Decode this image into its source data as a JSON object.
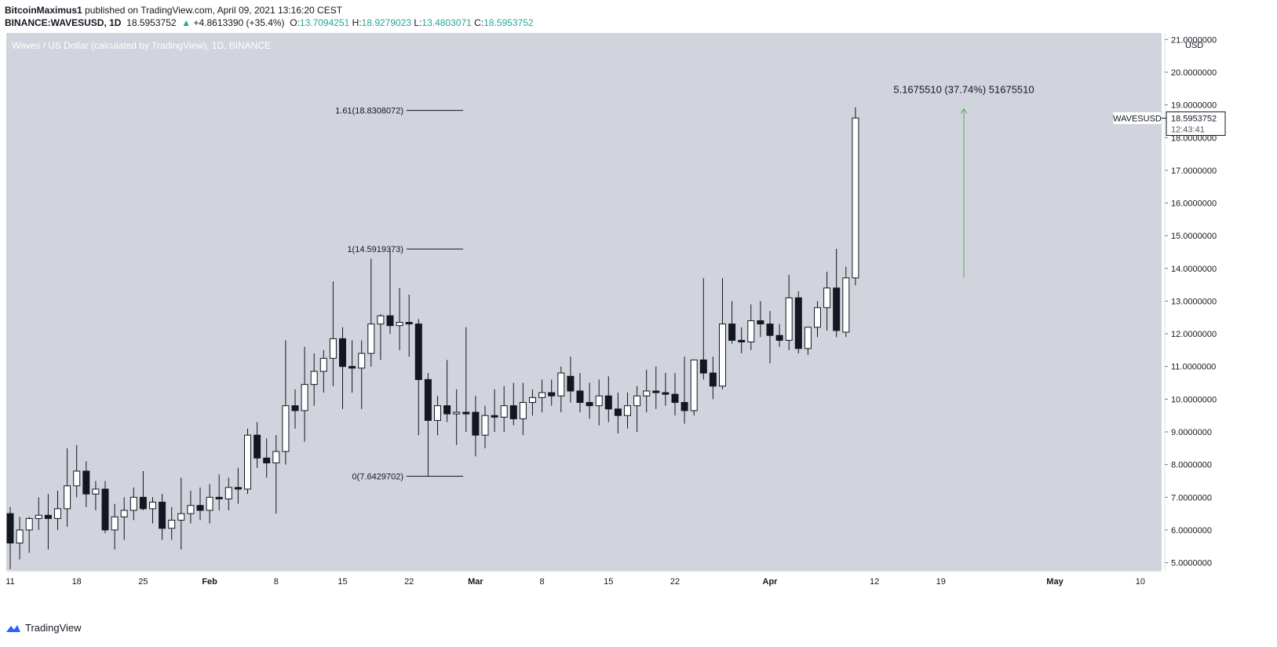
{
  "header": {
    "author": "BitcoinMaximus1",
    "published_text": "published on TradingView.com, April 09, 2021 13:16:20 CEST",
    "symbol": "BINANCE:WAVESUSD",
    "interval": "1D",
    "last": "18.5953752",
    "change": "+4.8613390 (+35.4%)",
    "open_label": "O:",
    "open": "13.7094251",
    "high_label": "H:",
    "high": "18.9279023",
    "low_label": "L:",
    "low": "13.4803071",
    "close_label": "C:",
    "close": "18.5953752"
  },
  "footer": {
    "brand": "TradingView"
  },
  "chart_data": {
    "type": "candlestick",
    "title": "Waves / US Dollar (calculated by TradingView), 1D, BINANCE",
    "currency_label": "USD",
    "ylim": [
      4.75,
      21.2
    ],
    "y_ticks": [
      "5.0000000",
      "6.0000000",
      "7.0000000",
      "8.0000000",
      "9.0000000",
      "10.0000000",
      "11.0000000",
      "12.0000000",
      "13.0000000",
      "14.0000000",
      "15.0000000",
      "16.0000000",
      "17.0000000",
      "18.0000000",
      "19.0000000",
      "20.0000000",
      "21.0000000"
    ],
    "x_ticks": [
      {
        "label": "11",
        "index": 0
      },
      {
        "label": "18",
        "index": 7
      },
      {
        "label": "25",
        "index": 14
      },
      {
        "label": "Feb",
        "index": 21
      },
      {
        "label": "8",
        "index": 28
      },
      {
        "label": "15",
        "index": 35
      },
      {
        "label": "22",
        "index": 42
      },
      {
        "label": "Mar",
        "index": 49
      },
      {
        "label": "8",
        "index": 56
      },
      {
        "label": "15",
        "index": 63
      },
      {
        "label": "22",
        "index": 70
      },
      {
        "label": "Apr",
        "index": 80
      },
      {
        "label": "12",
        "index": 91
      },
      {
        "label": "19",
        "index": 98
      },
      {
        "label": "May",
        "index": 110
      },
      {
        "label": "10",
        "index": 119
      }
    ],
    "candles": [
      {
        "o": 6.5,
        "h": 6.7,
        "l": 4.8,
        "c": 5.6
      },
      {
        "o": 5.6,
        "h": 6.4,
        "l": 5.1,
        "c": 6.0
      },
      {
        "o": 6.0,
        "h": 6.4,
        "l": 5.3,
        "c": 6.35
      },
      {
        "o": 6.35,
        "h": 7.0,
        "l": 6.0,
        "c": 6.45
      },
      {
        "o": 6.45,
        "h": 7.1,
        "l": 5.4,
        "c": 6.35
      },
      {
        "o": 6.35,
        "h": 7.2,
        "l": 6.0,
        "c": 6.65
      },
      {
        "o": 6.65,
        "h": 8.5,
        "l": 6.1,
        "c": 7.35
      },
      {
        "o": 7.35,
        "h": 8.6,
        "l": 7.0,
        "c": 7.8
      },
      {
        "o": 7.8,
        "h": 8.1,
        "l": 6.7,
        "c": 7.1
      },
      {
        "o": 7.1,
        "h": 7.5,
        "l": 6.6,
        "c": 7.25
      },
      {
        "o": 7.25,
        "h": 7.5,
        "l": 5.9,
        "c": 6.0
      },
      {
        "o": 6.0,
        "h": 6.8,
        "l": 5.4,
        "c": 6.4
      },
      {
        "o": 6.4,
        "h": 7.0,
        "l": 5.7,
        "c": 6.6
      },
      {
        "o": 6.6,
        "h": 7.3,
        "l": 6.3,
        "c": 7.0
      },
      {
        "o": 7.0,
        "h": 7.8,
        "l": 6.6,
        "c": 6.65
      },
      {
        "o": 6.65,
        "h": 7.0,
        "l": 6.2,
        "c": 6.85
      },
      {
        "o": 6.85,
        "h": 7.1,
        "l": 5.7,
        "c": 6.05
      },
      {
        "o": 6.05,
        "h": 6.7,
        "l": 5.7,
        "c": 6.3
      },
      {
        "o": 6.3,
        "h": 7.6,
        "l": 5.4,
        "c": 6.5
      },
      {
        "o": 6.5,
        "h": 7.2,
        "l": 6.2,
        "c": 6.75
      },
      {
        "o": 6.75,
        "h": 7.3,
        "l": 6.3,
        "c": 6.6
      },
      {
        "o": 6.6,
        "h": 7.4,
        "l": 6.2,
        "c": 7.0
      },
      {
        "o": 7.0,
        "h": 7.7,
        "l": 6.6,
        "c": 6.95
      },
      {
        "o": 6.95,
        "h": 7.6,
        "l": 6.6,
        "c": 7.3
      },
      {
        "o": 7.3,
        "h": 7.9,
        "l": 6.8,
        "c": 7.25
      },
      {
        "o": 7.25,
        "h": 9.1,
        "l": 7.1,
        "c": 8.9
      },
      {
        "o": 8.9,
        "h": 9.3,
        "l": 7.9,
        "c": 8.2
      },
      {
        "o": 8.2,
        "h": 8.8,
        "l": 7.6,
        "c": 8.05
      },
      {
        "o": 8.05,
        "h": 8.9,
        "l": 6.5,
        "c": 8.4
      },
      {
        "o": 8.4,
        "h": 11.8,
        "l": 8.0,
        "c": 9.8
      },
      {
        "o": 9.8,
        "h": 10.3,
        "l": 9.1,
        "c": 9.65
      },
      {
        "o": 9.65,
        "h": 11.6,
        "l": 8.7,
        "c": 10.45
      },
      {
        "o": 10.45,
        "h": 11.4,
        "l": 9.8,
        "c": 10.85
      },
      {
        "o": 10.85,
        "h": 11.5,
        "l": 10.2,
        "c": 11.25
      },
      {
        "o": 11.25,
        "h": 13.6,
        "l": 10.4,
        "c": 11.85
      },
      {
        "o": 11.85,
        "h": 12.2,
        "l": 9.7,
        "c": 11.0
      },
      {
        "o": 11.0,
        "h": 11.8,
        "l": 10.2,
        "c": 10.95
      },
      {
        "o": 10.95,
        "h": 11.8,
        "l": 9.7,
        "c": 11.4
      },
      {
        "o": 11.4,
        "h": 14.3,
        "l": 11.0,
        "c": 12.3
      },
      {
        "o": 12.3,
        "h": 12.6,
        "l": 11.2,
        "c": 12.55
      },
      {
        "o": 12.55,
        "h": 14.6,
        "l": 12.0,
        "c": 12.25
      },
      {
        "o": 12.25,
        "h": 13.4,
        "l": 11.5,
        "c": 12.35
      },
      {
        "o": 12.35,
        "h": 13.2,
        "l": 11.3,
        "c": 12.3
      },
      {
        "o": 12.3,
        "h": 12.45,
        "l": 8.9,
        "c": 10.6
      },
      {
        "o": 10.6,
        "h": 10.8,
        "l": 7.64,
        "c": 9.35
      },
      {
        "o": 9.35,
        "h": 10.1,
        "l": 8.9,
        "c": 9.8
      },
      {
        "o": 9.8,
        "h": 11.2,
        "l": 9.3,
        "c": 9.55
      },
      {
        "o": 9.55,
        "h": 10.3,
        "l": 8.6,
        "c": 9.6
      },
      {
        "o": 9.6,
        "h": 12.2,
        "l": 9.0,
        "c": 9.55
      },
      {
        "o": 9.6,
        "h": 10.1,
        "l": 8.25,
        "c": 8.9
      },
      {
        "o": 8.9,
        "h": 9.8,
        "l": 8.5,
        "c": 9.5
      },
      {
        "o": 9.5,
        "h": 10.3,
        "l": 9.0,
        "c": 9.45
      },
      {
        "o": 9.45,
        "h": 10.4,
        "l": 9.0,
        "c": 9.8
      },
      {
        "o": 9.8,
        "h": 10.5,
        "l": 9.2,
        "c": 9.4
      },
      {
        "o": 9.4,
        "h": 10.5,
        "l": 8.9,
        "c": 9.9
      },
      {
        "o": 9.9,
        "h": 10.3,
        "l": 9.5,
        "c": 10.05
      },
      {
        "o": 10.05,
        "h": 10.6,
        "l": 9.6,
        "c": 10.2
      },
      {
        "o": 10.2,
        "h": 10.6,
        "l": 9.8,
        "c": 10.1
      },
      {
        "o": 10.1,
        "h": 11.0,
        "l": 9.6,
        "c": 10.8
      },
      {
        "o": 10.7,
        "h": 11.3,
        "l": 9.9,
        "c": 10.25
      },
      {
        "o": 10.25,
        "h": 10.8,
        "l": 9.6,
        "c": 9.9
      },
      {
        "o": 9.9,
        "h": 10.5,
        "l": 9.4,
        "c": 9.8
      },
      {
        "o": 9.8,
        "h": 10.6,
        "l": 9.2,
        "c": 10.1
      },
      {
        "o": 10.1,
        "h": 10.7,
        "l": 9.3,
        "c": 9.7
      },
      {
        "o": 9.7,
        "h": 10.2,
        "l": 8.95,
        "c": 9.5
      },
      {
        "o": 9.5,
        "h": 10.2,
        "l": 9.1,
        "c": 9.8
      },
      {
        "o": 9.8,
        "h": 10.4,
        "l": 9.0,
        "c": 10.1
      },
      {
        "o": 10.1,
        "h": 10.9,
        "l": 9.6,
        "c": 10.25
      },
      {
        "o": 10.25,
        "h": 11.0,
        "l": 9.7,
        "c": 10.2
      },
      {
        "o": 10.2,
        "h": 10.8,
        "l": 9.8,
        "c": 10.15
      },
      {
        "o": 10.15,
        "h": 10.8,
        "l": 9.5,
        "c": 9.9
      },
      {
        "o": 9.9,
        "h": 11.3,
        "l": 9.25,
        "c": 9.65
      },
      {
        "o": 9.65,
        "h": 11.2,
        "l": 9.5,
        "c": 11.2
      },
      {
        "o": 11.2,
        "h": 13.7,
        "l": 10.6,
        "c": 10.8
      },
      {
        "o": 10.8,
        "h": 11.3,
        "l": 10.0,
        "c": 10.4
      },
      {
        "o": 10.4,
        "h": 13.7,
        "l": 10.3,
        "c": 12.3
      },
      {
        "o": 12.3,
        "h": 13.0,
        "l": 11.7,
        "c": 11.8
      },
      {
        "o": 11.8,
        "h": 12.2,
        "l": 11.4,
        "c": 11.75
      },
      {
        "o": 11.75,
        "h": 12.9,
        "l": 11.5,
        "c": 12.4
      },
      {
        "o": 12.4,
        "h": 13.0,
        "l": 11.9,
        "c": 12.3
      },
      {
        "o": 12.3,
        "h": 12.7,
        "l": 11.1,
        "c": 11.95
      },
      {
        "o": 11.95,
        "h": 12.3,
        "l": 11.6,
        "c": 11.8
      },
      {
        "o": 11.8,
        "h": 13.8,
        "l": 11.5,
        "c": 13.1
      },
      {
        "o": 13.1,
        "h": 13.3,
        "l": 11.4,
        "c": 11.55
      },
      {
        "o": 11.55,
        "h": 12.2,
        "l": 11.35,
        "c": 12.2
      },
      {
        "o": 12.2,
        "h": 13.0,
        "l": 11.9,
        "c": 12.8
      },
      {
        "o": 12.8,
        "h": 13.9,
        "l": 12.1,
        "c": 13.4
      },
      {
        "o": 13.4,
        "h": 14.6,
        "l": 11.9,
        "c": 12.1
      },
      {
        "o": 12.05,
        "h": 14.05,
        "l": 11.9,
        "c": 13.71
      },
      {
        "o": 13.71,
        "h": 18.93,
        "l": 13.48,
        "c": 18.6
      }
    ],
    "fib_levels": [
      {
        "label": "1.61(18.8308072)",
        "value": 18.8308072
      },
      {
        "label": "1(14.5919373)",
        "value": 14.5919373
      },
      {
        "label": "0(7.6429702)",
        "value": 7.6429702
      }
    ],
    "measure": {
      "text": "5.1675510 (37.74%) 51675510",
      "from": 13.71,
      "to": 18.88
    },
    "price_tag": {
      "symbol": "WAVESUSD",
      "price": "18.5953752",
      "countdown": "12:43:41"
    },
    "colors": {
      "bg": "#d1d4dc",
      "up_body": "#ffffff",
      "down_body": "#131722",
      "wick": "#131722",
      "measure": "#4caf50",
      "axis_text": "#131722"
    }
  }
}
